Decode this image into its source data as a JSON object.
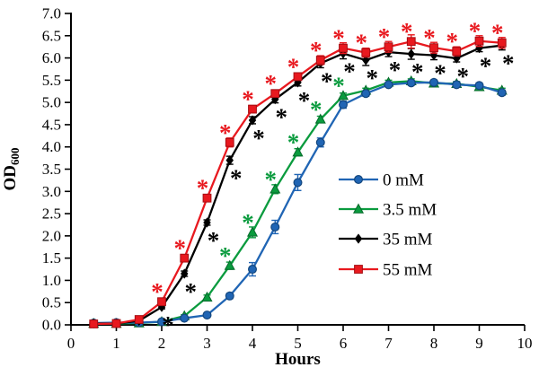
{
  "figure": {
    "background": "#ffffff"
  },
  "chart_data": {
    "type": "line",
    "title": "",
    "xlabel": "Hours",
    "ylabel": {
      "main": "OD",
      "sub": "600"
    },
    "xlim": [
      0,
      10
    ],
    "ylim": [
      0,
      7
    ],
    "grid": false,
    "legend_position": "center-right",
    "xticks": [
      {
        "value": 0,
        "label": "0"
      },
      {
        "value": 1,
        "label": "1"
      },
      {
        "value": 2,
        "label": "2"
      },
      {
        "value": 3,
        "label": "3"
      },
      {
        "value": 4,
        "label": "4"
      },
      {
        "value": 5,
        "label": "5"
      },
      {
        "value": 6,
        "label": "6"
      },
      {
        "value": 7,
        "label": "7"
      },
      {
        "value": 8,
        "label": "8"
      },
      {
        "value": 9,
        "label": "9"
      },
      {
        "value": 10,
        "label": "10"
      }
    ],
    "yticks": [
      {
        "value": 0.0,
        "label": "0.0"
      },
      {
        "value": 0.5,
        "label": "0.5"
      },
      {
        "value": 1.0,
        "label": "1.0"
      },
      {
        "value": 1.5,
        "label": "1.5"
      },
      {
        "value": 2.0,
        "label": "2.0"
      },
      {
        "value": 2.5,
        "label": "2.5"
      },
      {
        "value": 3.0,
        "label": "3.0"
      },
      {
        "value": 3.5,
        "label": "3.5"
      },
      {
        "value": 4.0,
        "label": "4.0"
      },
      {
        "value": 4.5,
        "label": "4.5"
      },
      {
        "value": 5.0,
        "label": "5.0"
      },
      {
        "value": 5.5,
        "label": "5.5"
      },
      {
        "value": 6.0,
        "label": "6.0"
      },
      {
        "value": 6.5,
        "label": "6.5"
      },
      {
        "value": 7.0,
        "label": "7.0"
      }
    ],
    "x": [
      0.5,
      1,
      1.5,
      2,
      2.5,
      3,
      3.5,
      4,
      4.5,
      5,
      5.5,
      6,
      6.5,
      7,
      7.5,
      8,
      8.5,
      9,
      9.5
    ],
    "series": [
      {
        "name": "3.5 mM",
        "color": "#0a9b3e",
        "edge": "#056a2a",
        "marker": "triangle",
        "values": [
          0.03,
          0.03,
          0.04,
          0.07,
          0.2,
          0.62,
          1.33,
          2.08,
          3.05,
          3.88,
          4.62,
          5.15,
          5.27,
          5.45,
          5.48,
          5.43,
          5.42,
          5.35,
          5.27
        ],
        "errors": [
          0.02,
          0.02,
          0.02,
          0.02,
          0.03,
          0.05,
          0.08,
          0.12,
          0.1,
          0.08,
          0.07,
          0.06,
          0.05,
          0.05,
          0.05,
          0.05,
          0.05,
          0.06,
          0.05
        ],
        "sig_x": [
          3.5,
          4,
          4.5,
          5,
          5.5,
          6
        ],
        "sig_pos": "above",
        "sig_symbol": "*"
      },
      {
        "name": "0 mM",
        "color": "#2065b4",
        "edge": "#14477e",
        "marker": "circle",
        "values": [
          0.04,
          0.05,
          0.05,
          0.07,
          0.15,
          0.22,
          0.65,
          1.25,
          2.2,
          3.2,
          4.1,
          4.95,
          5.2,
          5.4,
          5.44,
          5.45,
          5.4,
          5.38,
          5.22
        ],
        "errors": [
          0.02,
          0.02,
          0.02,
          0.02,
          0.03,
          0.03,
          0.06,
          0.15,
          0.15,
          0.18,
          0.1,
          0.08,
          0.06,
          0.05,
          0.05,
          0.05,
          0.06,
          0.06,
          0.06
        ],
        "sig_x": [],
        "sig_pos": "above",
        "sig_symbol": "*"
      },
      {
        "name": "35 mM",
        "color": "#000000",
        "edge": "#000000",
        "marker": "diamond",
        "values": [
          0.03,
          0.03,
          0.09,
          0.4,
          1.15,
          2.3,
          3.7,
          4.6,
          5.07,
          5.45,
          5.88,
          6.1,
          5.95,
          6.13,
          6.09,
          6.06,
          5.99,
          6.22,
          6.28
        ],
        "errors": [
          0.02,
          0.02,
          0.02,
          0.04,
          0.06,
          0.06,
          0.09,
          0.08,
          0.08,
          0.08,
          0.1,
          0.12,
          0.12,
          0.1,
          0.12,
          0.1,
          0.08,
          0.08,
          0.1
        ],
        "sig_x": [
          2,
          2.5,
          3,
          3.5,
          4,
          4.5,
          5,
          5.5,
          6,
          6.5,
          7,
          7.5,
          8,
          8.5,
          9,
          9.5
        ],
        "sig_pos": "below",
        "sig_symbol": "*"
      },
      {
        "name": "55 mM",
        "color": "#e8191f",
        "edge": "#a50d12",
        "marker": "square",
        "values": [
          0.02,
          0.03,
          0.12,
          0.52,
          1.5,
          2.85,
          4.1,
          4.85,
          5.2,
          5.58,
          5.95,
          6.22,
          6.12,
          6.25,
          6.37,
          6.23,
          6.15,
          6.38,
          6.34
        ],
        "errors": [
          0.02,
          0.02,
          0.03,
          0.05,
          0.06,
          0.08,
          0.1,
          0.08,
          0.08,
          0.08,
          0.1,
          0.12,
          0.1,
          0.12,
          0.15,
          0.12,
          0.1,
          0.12,
          0.12
        ],
        "sig_x": [
          2,
          2.5,
          3,
          3.5,
          4,
          4.5,
          5,
          5.5,
          6,
          6.5,
          7,
          7.5,
          8,
          8.5,
          9,
          9.5
        ],
        "sig_pos": "above",
        "sig_symbol": "*"
      }
    ],
    "legend": {
      "items": [
        "0 mM",
        "3.5 mM",
        "35 mM",
        "55 mM"
      ]
    }
  }
}
